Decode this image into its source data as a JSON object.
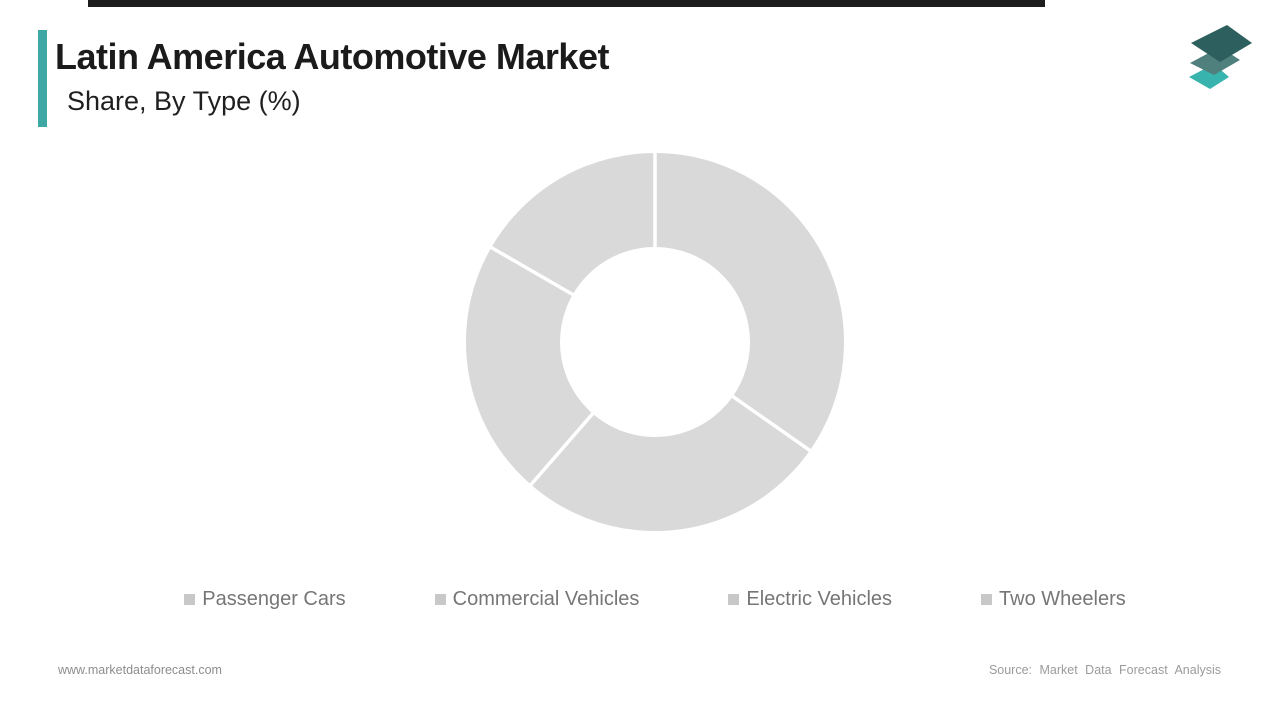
{
  "header": {
    "title": "Latin America Automotive Market",
    "subtitle": "Share, By Type (%)",
    "accent_color": "#3fa8a4"
  },
  "logo": {
    "name": "market-data-forecast-logo",
    "layer_colors": [
      "#38b3ad",
      "#4f807e",
      "#2c5f5d"
    ]
  },
  "chart_data": {
    "type": "donut",
    "title": "Latin America Automotive Market Share, By Type (%)",
    "categories": [
      "Passenger Cars",
      "Commercial Vehicles",
      "Electric Vehicles",
      "Two Wheelers"
    ],
    "values": [
      34.7,
      26.7,
      21.9,
      16.7
    ],
    "segment_boundary_angles_deg": [
      0,
      125,
      221,
      300,
      360
    ],
    "segment_color": "#d9d9d9",
    "divider_color": "#ffffff",
    "outer_radius_px": 189,
    "inner_radius_px": 95,
    "legend_position": "bottom",
    "data_labels_shown": false
  },
  "legend": {
    "marker_color": "#c8c8c8",
    "items": [
      {
        "label": "Passenger Cars"
      },
      {
        "label": "Commercial Vehicles"
      },
      {
        "label": "Electric Vehicles"
      },
      {
        "label": "Two Wheelers"
      }
    ]
  },
  "footer": {
    "website": "www.marketdataforecast.com",
    "source": "Source: Market Data Forecast Analysis"
  }
}
